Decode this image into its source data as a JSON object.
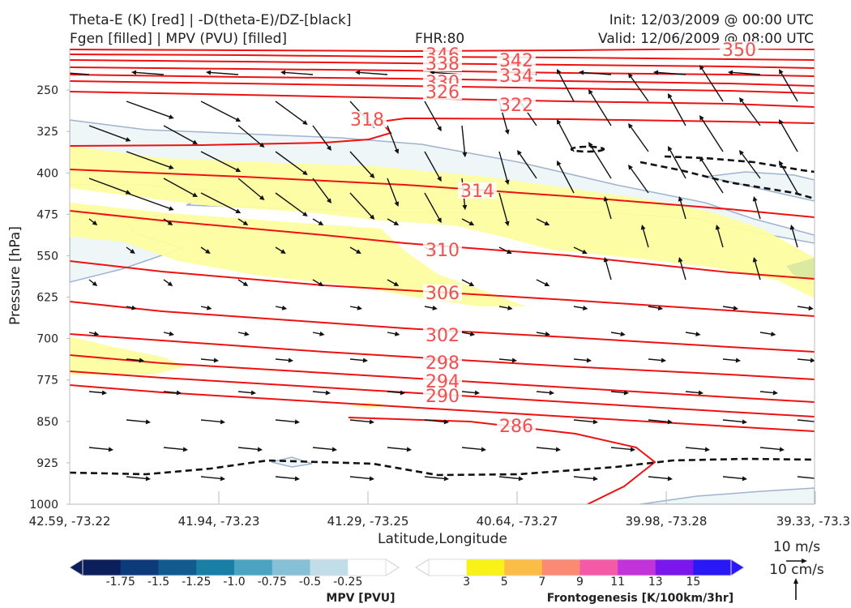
{
  "header": {
    "title_left_1": "Theta-E (K) [red] | -D(theta-E)/DZ-[black]",
    "title_left_2": "Fgen [filled] | MPV (PVU) [filled]",
    "fhr": "FHR:80",
    "init": "Init: 12/03/2009 @ 00:00 UTC",
    "valid": "Valid: 12/06/2009 @ 08:00 UTC"
  },
  "chart_data": {
    "type": "cross-section",
    "xlabel": "Latitude,Longitude",
    "ylabel": "Pressure [hPa]",
    "x_ticks": [
      "42.59, -73.22",
      "41.94, -73.23",
      "41.29, -73.25",
      "40.64, -73.27",
      "39.98, -73.28",
      "39.33, -73.3"
    ],
    "y_ticks": [
      250,
      325,
      400,
      475,
      550,
      625,
      700,
      775,
      850,
      925,
      1000
    ],
    "ylim": [
      1000,
      175
    ],
    "theta_e_labels": [
      350,
      346,
      342,
      338,
      334,
      330,
      326,
      322,
      318,
      314,
      310,
      306,
      302,
      298,
      294,
      290,
      286
    ],
    "mpv_colorbar": {
      "label": "MPV [PVU]",
      "ticks": [
        "-1.75",
        "-1.5",
        "-1.25",
        "-1.0",
        "-0.75",
        "-0.5",
        "-0.25"
      ],
      "colors": [
        "#0a1f5c",
        "#0d3a78",
        "#115b8e",
        "#1a7fa5",
        "#4ba3c3",
        "#85c0d6",
        "#c1dde7",
        "#ffffff"
      ]
    },
    "fgen_colorbar": {
      "label": "Frontogenesis [K/100km/3hr]",
      "ticks": [
        "3",
        "5",
        "7",
        "9",
        "11",
        "13",
        "15"
      ],
      "colors": [
        "#ffffff",
        "#f9f216",
        "#fbbd45",
        "#fa8b72",
        "#f55aa8",
        "#c234d9",
        "#7c16ef",
        "#2a18f7"
      ]
    },
    "wind_reference": {
      "horizontal": "10 m/s",
      "vertical": "10 cm/s"
    }
  }
}
